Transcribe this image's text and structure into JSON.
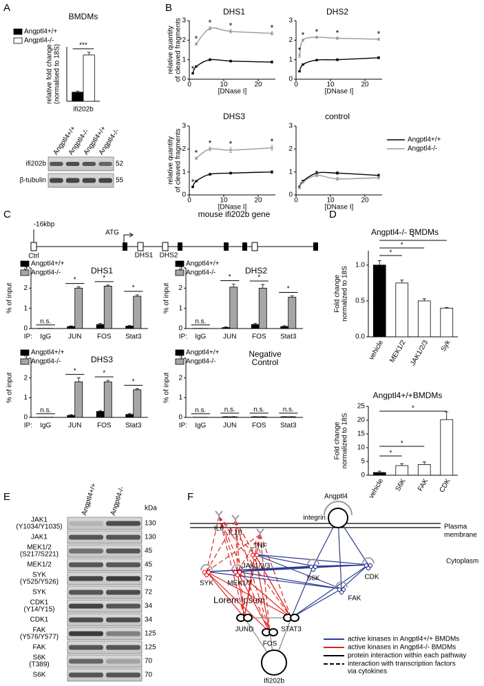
{
  "panel_labels": [
    "A",
    "B",
    "C",
    "D",
    "E",
    "F"
  ],
  "chart_data": [
    {
      "type": "bar",
      "title": "BMDMs",
      "ylabel": [
        "relative fold change",
        "(normalised to 18S)"
      ],
      "categories": [
        "ifi202b"
      ],
      "series": [
        {
          "name": "Angptl4+/+",
          "color": "#000000",
          "values": [
            1.0
          ],
          "errors": [
            0.12
          ]
        },
        {
          "name": "Angptl4-/-",
          "color": "#ffffff",
          "values": [
            5.1
          ],
          "errors": [
            0.3
          ]
        }
      ],
      "ylim": [
        0,
        6
      ],
      "annotations": [
        "***"
      ],
      "legend": "upper left"
    },
    {
      "type": "line",
      "title": "DHS1",
      "ylabel": [
        "relative quantity",
        "of cleaved fragments"
      ],
      "xlabel": "[DNase I]",
      "x": [
        1,
        2,
        6,
        12,
        24
      ],
      "series": [
        {
          "color": "#000000",
          "values": [
            0.3,
            0.65,
            1.0,
            0.93,
            0.88
          ],
          "errors": [
            0.03,
            0.04,
            0.05,
            0.05,
            0.05
          ]
        },
        {
          "color": "#999999",
          "values": [
            null,
            1.8,
            2.6,
            2.45,
            2.35
          ],
          "errors": [
            null,
            0.06,
            0.08,
            0.08,
            0.08
          ]
        }
      ],
      "point_labels": [
        "*",
        "*",
        "*",
        "*",
        "*"
      ],
      "xlim": [
        0,
        25
      ],
      "xticks": [
        0,
        10,
        20
      ],
      "ylim": [
        0,
        3
      ],
      "yticks": [
        0,
        1,
        2,
        3
      ]
    },
    {
      "type": "line",
      "title": "DHS2",
      "xlabel": "[DNase I]",
      "x": [
        1,
        2,
        6,
        12,
        24
      ],
      "series": [
        {
          "color": "#000000",
          "values": [
            0.4,
            0.75,
            0.98,
            1.0,
            1.1
          ],
          "errors": [
            0.03,
            0.04,
            0.04,
            0.05,
            0.05
          ]
        },
        {
          "color": "#999999",
          "values": [
            1.2,
            2.0,
            2.15,
            2.1,
            2.05
          ],
          "errors": [
            0.08,
            0.06,
            0.06,
            0.06,
            0.06
          ]
        }
      ],
      "point_labels": [
        "*",
        "*",
        "*",
        "*",
        "*"
      ],
      "xlim": [
        0,
        25
      ],
      "xticks": [
        0,
        10,
        20
      ],
      "ylim": [
        0,
        3
      ],
      "yticks": [
        0,
        1,
        2,
        3
      ]
    },
    {
      "type": "line",
      "title": "DHS3",
      "ylabel": [
        "relative quantity",
        "of cleaved fragments"
      ],
      "xlabel": "[DNase I]",
      "x": [
        1,
        2,
        6,
        12,
        24
      ],
      "series": [
        {
          "color": "#000000",
          "values": [
            0.35,
            0.6,
            0.9,
            0.95,
            1.0
          ],
          "errors": [
            0.03,
            0.03,
            0.04,
            0.04,
            0.05
          ]
        },
        {
          "color": "#999999",
          "values": [
            null,
            1.6,
            2.0,
            1.95,
            2.05
          ],
          "errors": [
            null,
            0.05,
            0.08,
            0.1,
            0.1
          ]
        }
      ],
      "point_labels": [
        "*",
        "*",
        "*",
        "*",
        "*"
      ],
      "xlim": [
        0,
        25
      ],
      "xticks": [
        0,
        10,
        20
      ],
      "ylim": [
        0,
        3
      ],
      "yticks": [
        0,
        1,
        2,
        3
      ]
    },
    {
      "type": "line",
      "title": "control",
      "xlabel": "[DNase I]",
      "x": [
        1,
        2,
        6,
        12,
        24
      ],
      "series": [
        {
          "name": "Angptl4+/+",
          "color": "#000000",
          "values": [
            0.35,
            0.6,
            0.95,
            0.95,
            0.85
          ],
          "errors": [
            0.03,
            0.04,
            0.08,
            0.05,
            0.05
          ]
        },
        {
          "name": "Angptl4-/-",
          "color": "#999999",
          "values": [
            0.3,
            0.55,
            0.85,
            0.7,
            0.75
          ],
          "errors": [
            0.03,
            0.04,
            0.06,
            0.06,
            0.05
          ]
        }
      ],
      "xlim": [
        0,
        25
      ],
      "xticks": [
        0,
        10,
        20
      ],
      "ylim": [
        0,
        3
      ],
      "yticks": [
        0,
        1,
        2,
        3
      ],
      "legend": "upper right"
    },
    {
      "type": "bar",
      "title": "DHS1",
      "ylabel": [
        "% of input"
      ],
      "x_prefix": "IP:",
      "categories": [
        "IgG",
        "JUN",
        "FOS",
        "Stat3"
      ],
      "series": [
        {
          "name": "Angptl4+/+",
          "color": "#000000",
          "values": [
            0.01,
            0.1,
            0.2,
            0.12
          ],
          "errors": [
            0,
            0.03,
            0.05,
            0.03
          ]
        },
        {
          "name": "Angptl4-/-",
          "color": "#a6a6a6",
          "values": [
            0.01,
            2.0,
            2.1,
            1.6
          ],
          "errors": [
            0,
            0.06,
            0.05,
            0.07
          ]
        }
      ],
      "annotations": [
        "n.s.",
        "*",
        "*",
        "*"
      ],
      "ylim": [
        0,
        3
      ],
      "yticks": [
        0,
        1,
        2,
        3
      ],
      "legend": "upper left"
    },
    {
      "type": "bar",
      "title": "DHS2",
      "ylabel": [
        "% of input"
      ],
      "x_prefix": "IP:",
      "categories": [
        "IgG",
        "JUN",
        "FOS",
        "Stat3"
      ],
      "series": [
        {
          "name": "Angptl4+/+",
          "color": "#000000",
          "values": [
            0.01,
            0.05,
            0.2,
            0.1
          ],
          "errors": [
            0,
            0.03,
            0.05,
            0.04
          ]
        },
        {
          "name": "Angptl4-/-",
          "color": "#a6a6a6",
          "values": [
            0.01,
            2.05,
            2.0,
            1.55
          ],
          "errors": [
            0,
            0.15,
            0.18,
            0.07
          ]
        }
      ],
      "annotations": [
        "n.s.",
        "*",
        "*",
        "*"
      ],
      "ylim": [
        0,
        3
      ],
      "yticks": [
        0,
        1,
        2,
        3
      ],
      "legend": "upper left"
    },
    {
      "type": "bar",
      "title": "DHS3",
      "ylabel": [
        "% of input"
      ],
      "x_prefix": "IP:",
      "categories": [
        "IgG",
        "JUN",
        "FOS",
        "Stat3"
      ],
      "series": [
        {
          "name": "Angptl4+/+",
          "color": "#000000",
          "values": [
            0.01,
            0.1,
            0.3,
            0.15
          ],
          "errors": [
            0,
            0.04,
            0.05,
            0.05
          ]
        },
        {
          "name": "Angptl4-/-",
          "color": "#a6a6a6",
          "values": [
            0.01,
            1.8,
            1.8,
            1.4
          ],
          "errors": [
            0,
            0.2,
            0.08,
            0.05
          ]
        }
      ],
      "annotations": [
        "n.s.",
        "*",
        "*",
        "*"
      ],
      "ylim": [
        0,
        3
      ],
      "yticks": [
        0,
        1,
        2,
        3
      ],
      "legend": "upper left"
    },
    {
      "type": "bar",
      "title": [
        "Negative",
        "Control"
      ],
      "ylabel": [
        "% of input"
      ],
      "x_prefix": "IP:",
      "categories": [
        "IgG",
        "JUN",
        "FOS",
        "Stat3"
      ],
      "series": [
        {
          "name": "Angptl4+/+",
          "color": "#000000",
          "values": [
            0.01,
            0.03,
            0.03,
            0.03
          ],
          "errors": [
            0,
            0.01,
            0.01,
            0.01
          ]
        },
        {
          "name": "Angptl4-/-",
          "color": "#a6a6a6",
          "values": [
            0.01,
            0.03,
            0.03,
            0.03
          ],
          "errors": [
            0,
            0.01,
            0.01,
            0.01
          ]
        }
      ],
      "annotations": [
        "n.s.",
        "n.s.",
        "n.s.",
        "n.s."
      ],
      "ylim": [
        0,
        3
      ],
      "yticks": [
        0,
        1,
        2,
        3
      ],
      "legend": "upper left"
    },
    {
      "type": "bar",
      "title": "Angptl4-/- BMDMs",
      "ylabel": [
        "Fold change",
        "normalized to 18S"
      ],
      "categories": [
        "vehicle",
        "MEK1/2",
        "JAK1/2/3",
        "Syk"
      ],
      "values": [
        1.0,
        0.75,
        0.5,
        0.4
      ],
      "errors": [
        0.06,
        0.04,
        0.03,
        0.01
      ],
      "colors": [
        "#000000",
        "#ffffff",
        "#ffffff",
        "#ffffff"
      ],
      "ylim": [
        0,
        1.2
      ],
      "yticks": [
        {
          "value": 0,
          "label": "0.0"
        },
        {
          "value": 0.5,
          "label": "0.5"
        },
        {
          "value": 1,
          "label": "1.0"
        }
      ],
      "brackets": [
        {
          "label": "*",
          "from": "vehicle",
          "to": "MEK1/2"
        },
        {
          "label": "*",
          "from": "vehicle",
          "to": "JAK1/2/3"
        },
        {
          "label": "*",
          "from": "vehicle",
          "to": "Syk"
        }
      ]
    },
    {
      "type": "bar",
      "title": "Angptl4+/+BMDMs",
      "ylabel": [
        "Fold change",
        "normalized to 18S"
      ],
      "categories": [
        "vehicle",
        "S6K",
        "FAK",
        "CDK"
      ],
      "values": [
        1.0,
        3.5,
        3.9,
        20.2
      ],
      "errors": [
        0.5,
        0.7,
        0.9,
        2.8
      ],
      "colors": [
        "#000000",
        "#ffffff",
        "#ffffff",
        "#ffffff"
      ],
      "ylim": [
        0,
        25
      ],
      "yticks": [
        0,
        5,
        10,
        15,
        20,
        25
      ],
      "brackets": [
        {
          "label": "*",
          "from": "vehicle",
          "to": "S6K"
        },
        {
          "label": "*",
          "from": "vehicle",
          "to": "FAK"
        },
        {
          "label": "*",
          "from": "vehicle",
          "to": "CDK"
        }
      ]
    }
  ],
  "blot_a": {
    "lanes": [
      "Angptl4+/+",
      "Angptl4-/-",
      "Angptl4+/+",
      "Angptl4-/-"
    ],
    "rows": [
      {
        "label": "ifi202b",
        "kda": 52
      },
      {
        "label": "β-tubulin",
        "kda": 55
      }
    ]
  },
  "gene_map": {
    "title": "mouse ifi202b gene",
    "labels": [
      "-16kbp",
      "ATG",
      "Ctrl",
      "DHS1",
      "DHS2"
    ]
  },
  "blot_e": {
    "lanes": [
      "Angptl4+/+",
      "Angptl4-/-"
    ],
    "unit": "kDa",
    "rows": [
      {
        "label": [
          "JAK1",
          "(Y1034/Y1035)"
        ],
        "kda": 130
      },
      {
        "label": "JAK1",
        "kda": 130
      },
      {
        "label": [
          "MEK1/2",
          "(S217/S221)"
        ],
        "kda": 45
      },
      {
        "label": "MEK1/2",
        "kda": 45
      },
      {
        "label": [
          "SYK",
          "(Y525/Y526)"
        ],
        "kda": 72
      },
      {
        "label": "SYK",
        "kda": 72
      },
      {
        "label": [
          "CDK1",
          "(Y14/Y15)"
        ],
        "kda": 34
      },
      {
        "label": "CDK1",
        "kda": 34
      },
      {
        "label": [
          "FAK",
          "(Y576/Y577)"
        ],
        "kda": 125
      },
      {
        "label": "FAK",
        "kda": 125
      },
      {
        "label": [
          "S6K",
          "(T389)"
        ],
        "kda": 70
      },
      {
        "label": "S6K",
        "kda": 70
      }
    ]
  },
  "network": {
    "nodes": [
      "IL6",
      "IL1B",
      "TNF",
      "Angptl4",
      "integrin",
      "JAK1/2/3",
      "SYK",
      "MEK1/2",
      "S6K",
      "CDK",
      "FAK",
      "JUND",
      "FOS",
      "STAT3",
      "Ifi202b"
    ],
    "regions": [
      [
        "Plasma",
        "membrane"
      ],
      "Cytoplasm"
    ],
    "note": "Lorem ipsum",
    "legend": [
      "active kinases in Angptl4+/+ BMDMs",
      "active kinases in Angptl4-/- BMDMs",
      "protein interaction within each pathway",
      [
        "interaction with transcription factors",
        "via cytokines"
      ]
    ]
  }
}
